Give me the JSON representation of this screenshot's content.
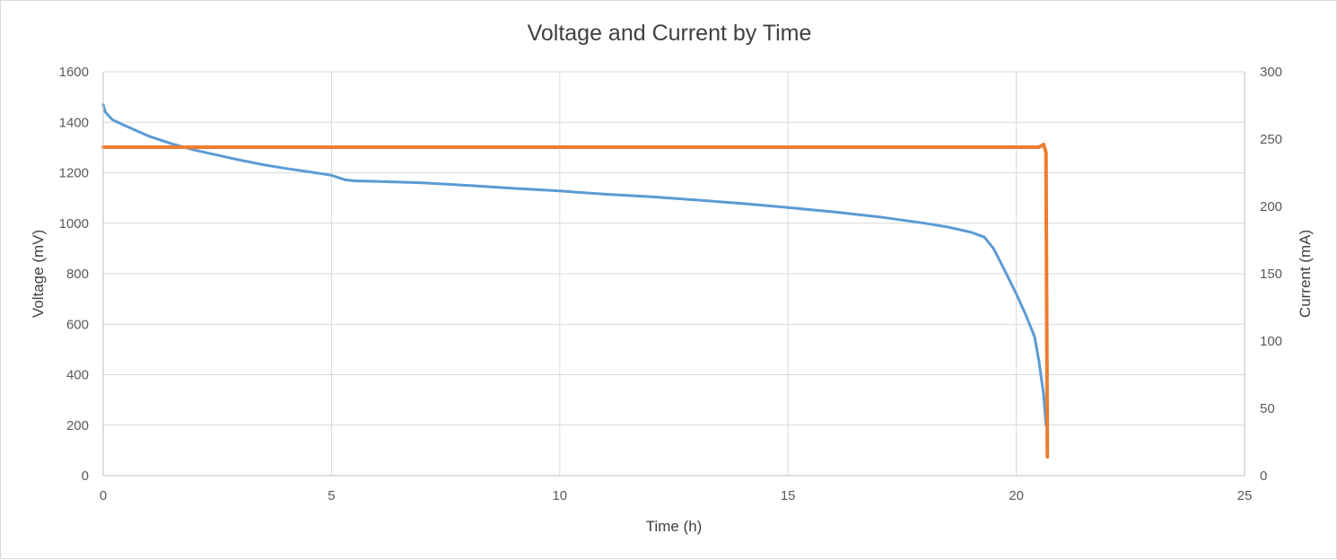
{
  "chart_data": {
    "type": "line",
    "title": "Voltage and Current by Time",
    "xlabel": "Time (h)",
    "ylabel": "Voltage (mV)",
    "y2label": "Current (mA)",
    "xlim": [
      0,
      25
    ],
    "ylim": [
      0,
      1600
    ],
    "y2lim": [
      0,
      300
    ],
    "x_ticks": [
      "0",
      "5",
      "10",
      "15",
      "20",
      "25"
    ],
    "y_ticks": [
      "0",
      "200",
      "400",
      "600",
      "800",
      "1000",
      "1200",
      "1400",
      "1600"
    ],
    "y2_ticks": [
      "0",
      "50",
      "100",
      "150",
      "200",
      "250",
      "300"
    ],
    "grid": true,
    "legend": "none",
    "series": [
      {
        "axis": "left",
        "color": "#5b9bd5",
        "x": [
          0,
          0.05,
          0.2,
          0.5,
          1,
          1.5,
          2,
          2.5,
          3,
          3.5,
          4,
          4.5,
          5,
          5.3,
          5.5,
          6,
          7,
          8,
          9,
          10,
          11,
          12,
          13,
          14,
          15,
          16,
          17,
          18,
          18.5,
          19,
          19.3,
          19.5,
          19.7,
          20,
          20.2,
          20.4,
          20.5,
          20.6,
          20.65
        ],
        "values": [
          1470,
          1440,
          1410,
          1385,
          1345,
          1315,
          1290,
          1270,
          1250,
          1232,
          1217,
          1204,
          1190,
          1172,
          1168,
          1166,
          1160,
          1150,
          1138,
          1128,
          1115,
          1105,
          1092,
          1078,
          1062,
          1045,
          1025,
          1000,
          985,
          965,
          945,
          900,
          830,
          720,
          640,
          550,
          450,
          320,
          200
        ]
      },
      {
        "axis": "right",
        "color": "#ed7d31",
        "x": [
          0,
          1,
          2,
          3,
          4,
          5,
          6,
          7,
          8,
          9,
          10,
          11,
          12,
          13,
          14,
          15,
          16,
          17,
          18,
          19,
          20,
          20.5,
          20.6,
          20.65,
          20.68
        ],
        "values": [
          244,
          244,
          244,
          244,
          244,
          244,
          244,
          244,
          244,
          244,
          244,
          244,
          244,
          244,
          244,
          244,
          244,
          244,
          244,
          244,
          244,
          244,
          246,
          240,
          14
        ]
      }
    ]
  }
}
